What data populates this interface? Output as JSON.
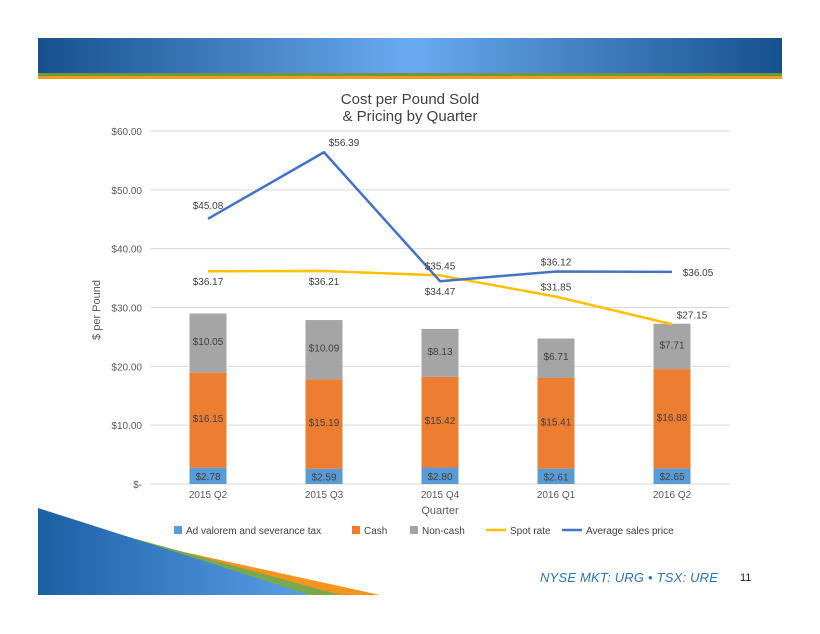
{
  "footer": {
    "exchange_text": "NYSE MKT: URG • TSX: URE",
    "page_number": "11"
  },
  "colors": {
    "ad_valorem": "#5b9bd5",
    "cash": "#ed7d31",
    "non_cash": "#a5a5a5",
    "spot_rate": "#ffc000",
    "avg_sales_price": "#4472c4",
    "footer_text": "#2e74b5"
  },
  "chart_data": {
    "type": "bar",
    "title": [
      "Cost per Pound Sold",
      "& Pricing by Quarter"
    ],
    "xlabel": "Quarter",
    "ylabel": "$ per Pound",
    "ylim": [
      0,
      60
    ],
    "yticks": [
      {
        "value": 0,
        "label": "$-"
      },
      {
        "value": 10,
        "label": "$10.00"
      },
      {
        "value": 20,
        "label": "$20.00"
      },
      {
        "value": 30,
        "label": "$30.00"
      },
      {
        "value": 40,
        "label": "$40.00"
      },
      {
        "value": 50,
        "label": "$50.00"
      },
      {
        "value": 60,
        "label": "$60.00"
      }
    ],
    "categories": [
      "2015 Q2",
      "2015 Q3",
      "2015 Q4",
      "2016 Q1",
      "2016 Q2"
    ],
    "bar_series": [
      {
        "name": "Ad valorem and severance tax",
        "color": "#5b9bd5",
        "values": [
          2.78,
          2.59,
          2.8,
          2.61,
          2.65
        ],
        "labels": [
          "$2.78",
          "$2.59",
          "$2.80",
          "$2.61",
          "$2.65"
        ]
      },
      {
        "name": "Cash",
        "color": "#ed7d31",
        "values": [
          16.15,
          15.19,
          15.42,
          15.41,
          16.88
        ],
        "labels": [
          "$16.15",
          "$15.19",
          "$15.42",
          "$15.41",
          "$16.88"
        ]
      },
      {
        "name": "Non-cash",
        "color": "#a5a5a5",
        "values": [
          10.05,
          10.09,
          8.13,
          6.71,
          7.71
        ],
        "labels": [
          "$10.05",
          "$10.09",
          "$8.13",
          "$6.71",
          "$7.71"
        ]
      }
    ],
    "line_series": [
      {
        "name": "Spot rate",
        "color": "#ffc000",
        "values": [
          36.17,
          36.21,
          35.45,
          31.85,
          27.15
        ],
        "labels": [
          "$36.17",
          "$36.21",
          "$35.45",
          "$31.85",
          "$27.15"
        ]
      },
      {
        "name": "Average sales price",
        "color": "#4472c4",
        "values": [
          45.08,
          56.39,
          34.47,
          36.12,
          36.05
        ],
        "labels": [
          "$45.08",
          "$56.39",
          "$34.47",
          "$36.12",
          "$36.05"
        ]
      }
    ],
    "legend": [
      "Ad valorem and severance tax",
      "Cash",
      "Non-cash",
      "Spot rate",
      "Average sales price"
    ],
    "legend_position": "bottom",
    "grid": true
  }
}
